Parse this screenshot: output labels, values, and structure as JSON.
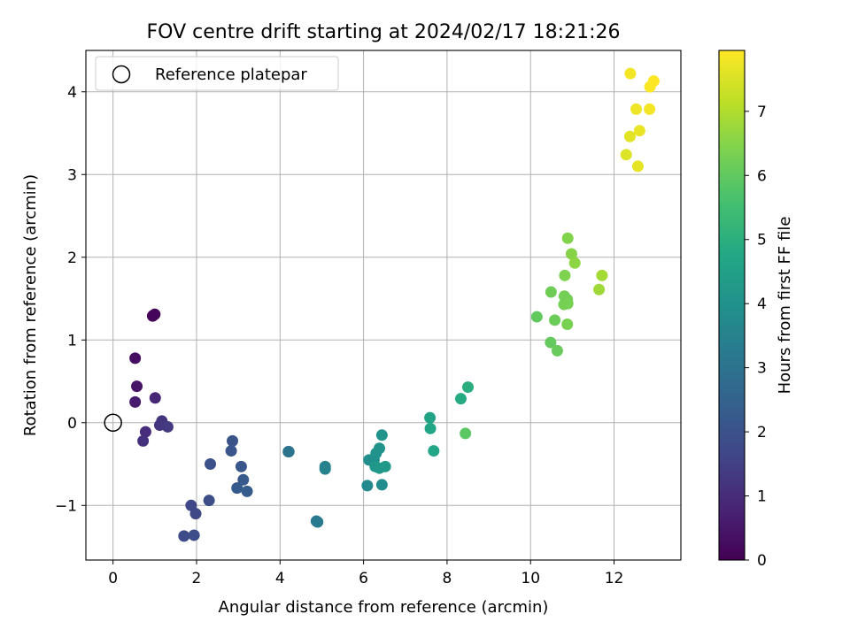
{
  "chart_data": {
    "type": "scatter",
    "title": "FOV centre drift starting at 2024/02/17 18:21:26",
    "xlabel": "Angular distance from reference (arcmin)",
    "ylabel": "Rotation from reference (arcmin)",
    "xlim": [
      -0.65,
      13.6
    ],
    "ylim": [
      -1.66,
      4.5
    ],
    "x_ticks": [
      0,
      2,
      4,
      6,
      8,
      10,
      12
    ],
    "y_ticks": [
      -1,
      0,
      1,
      2,
      3,
      4
    ],
    "grid": true,
    "legend": {
      "position": "top-left",
      "entries": [
        "Reference platepar"
      ]
    },
    "reference_point": {
      "x": 0,
      "y": 0
    },
    "colorbar": {
      "label": "Hours from first FF file",
      "colormap": "viridis",
      "range": [
        0,
        7.95
      ],
      "ticks": [
        0,
        1,
        2,
        3,
        4,
        5,
        6,
        7
      ]
    },
    "points": [
      {
        "x": 0.95,
        "y": 1.29,
        "h": 0.0
      },
      {
        "x": 1.0,
        "y": 1.31,
        "h": 0.05
      },
      {
        "x": 0.97,
        "y": 1.3,
        "h": 0.1
      },
      {
        "x": 0.53,
        "y": 0.78,
        "h": 0.3
      },
      {
        "x": 0.57,
        "y": 0.44,
        "h": 0.45
      },
      {
        "x": 0.53,
        "y": 0.25,
        "h": 0.6
      },
      {
        "x": 1.01,
        "y": 0.3,
        "h": 0.85
      },
      {
        "x": 0.78,
        "y": -0.11,
        "h": 1.0
      },
      {
        "x": 0.72,
        "y": -0.22,
        "h": 1.1
      },
      {
        "x": 1.17,
        "y": 0.02,
        "h": 1.2
      },
      {
        "x": 1.12,
        "y": -0.03,
        "h": 1.25
      },
      {
        "x": 1.31,
        "y": -0.05,
        "h": 1.35
      },
      {
        "x": 1.87,
        "y": -1.0,
        "h": 1.7
      },
      {
        "x": 1.98,
        "y": -1.1,
        "h": 1.75
      },
      {
        "x": 1.7,
        "y": -1.37,
        "h": 1.8
      },
      {
        "x": 1.94,
        "y": -1.36,
        "h": 1.85
      },
      {
        "x": 2.3,
        "y": -0.94,
        "h": 1.9
      },
      {
        "x": 2.33,
        "y": -0.5,
        "h": 1.95
      },
      {
        "x": 2.86,
        "y": -0.22,
        "h": 2.05
      },
      {
        "x": 2.83,
        "y": -0.34,
        "h": 2.1
      },
      {
        "x": 3.07,
        "y": -0.53,
        "h": 2.15
      },
      {
        "x": 3.12,
        "y": -0.69,
        "h": 2.2
      },
      {
        "x": 2.97,
        "y": -0.79,
        "h": 2.25
      },
      {
        "x": 3.21,
        "y": -0.83,
        "h": 2.3
      },
      {
        "x": 4.21,
        "y": -0.35,
        "h": 3.0
      },
      {
        "x": 4.2,
        "y": -0.35,
        "h": 3.05
      },
      {
        "x": 4.87,
        "y": -1.19,
        "h": 3.2
      },
      {
        "x": 4.9,
        "y": -1.2,
        "h": 3.25
      },
      {
        "x": 5.08,
        "y": -0.53,
        "h": 3.45
      },
      {
        "x": 5.08,
        "y": -0.56,
        "h": 3.5
      },
      {
        "x": 6.09,
        "y": -0.76,
        "h": 3.75
      },
      {
        "x": 6.44,
        "y": -0.75,
        "h": 3.85
      },
      {
        "x": 6.13,
        "y": -0.45,
        "h": 3.9
      },
      {
        "x": 6.25,
        "y": -0.45,
        "h": 3.95
      },
      {
        "x": 6.3,
        "y": -0.37,
        "h": 4.0
      },
      {
        "x": 6.38,
        "y": -0.31,
        "h": 4.05
      },
      {
        "x": 6.44,
        "y": -0.15,
        "h": 4.1
      },
      {
        "x": 6.28,
        "y": -0.53,
        "h": 4.15
      },
      {
        "x": 6.38,
        "y": -0.55,
        "h": 4.2
      },
      {
        "x": 6.52,
        "y": -0.53,
        "h": 4.25
      },
      {
        "x": 7.59,
        "y": 0.06,
        "h": 4.6
      },
      {
        "x": 7.6,
        "y": -0.07,
        "h": 4.65
      },
      {
        "x": 7.68,
        "y": -0.34,
        "h": 4.7
      },
      {
        "x": 8.33,
        "y": 0.29,
        "h": 4.85
      },
      {
        "x": 8.5,
        "y": 0.43,
        "h": 4.95
      },
      {
        "x": 8.44,
        "y": -0.13,
        "h": 5.9
      },
      {
        "x": 10.15,
        "y": 1.28,
        "h": 6.0
      },
      {
        "x": 10.48,
        "y": 0.97,
        "h": 6.05
      },
      {
        "x": 10.64,
        "y": 0.87,
        "h": 6.1
      },
      {
        "x": 10.58,
        "y": 1.24,
        "h": 6.15
      },
      {
        "x": 10.49,
        "y": 1.58,
        "h": 6.2
      },
      {
        "x": 10.81,
        "y": 1.53,
        "h": 6.25
      },
      {
        "x": 10.88,
        "y": 1.49,
        "h": 6.25
      },
      {
        "x": 10.8,
        "y": 1.43,
        "h": 6.3
      },
      {
        "x": 10.89,
        "y": 1.44,
        "h": 6.3
      },
      {
        "x": 10.88,
        "y": 1.19,
        "h": 6.35
      },
      {
        "x": 10.82,
        "y": 1.78,
        "h": 6.4
      },
      {
        "x": 10.89,
        "y": 2.23,
        "h": 6.45
      },
      {
        "x": 10.98,
        "y": 2.04,
        "h": 6.5
      },
      {
        "x": 11.06,
        "y": 1.93,
        "h": 6.6
      },
      {
        "x": 11.64,
        "y": 1.61,
        "h": 6.8
      },
      {
        "x": 11.71,
        "y": 1.78,
        "h": 6.85
      },
      {
        "x": 12.29,
        "y": 3.24,
        "h": 7.55
      },
      {
        "x": 12.38,
        "y": 3.46,
        "h": 7.6
      },
      {
        "x": 12.57,
        "y": 3.1,
        "h": 7.65
      },
      {
        "x": 12.61,
        "y": 3.53,
        "h": 7.7
      },
      {
        "x": 12.53,
        "y": 3.79,
        "h": 7.75
      },
      {
        "x": 12.39,
        "y": 4.22,
        "h": 7.8
      },
      {
        "x": 12.85,
        "y": 3.79,
        "h": 7.85
      },
      {
        "x": 12.86,
        "y": 4.06,
        "h": 7.9
      },
      {
        "x": 12.95,
        "y": 4.13,
        "h": 7.95
      }
    ]
  }
}
